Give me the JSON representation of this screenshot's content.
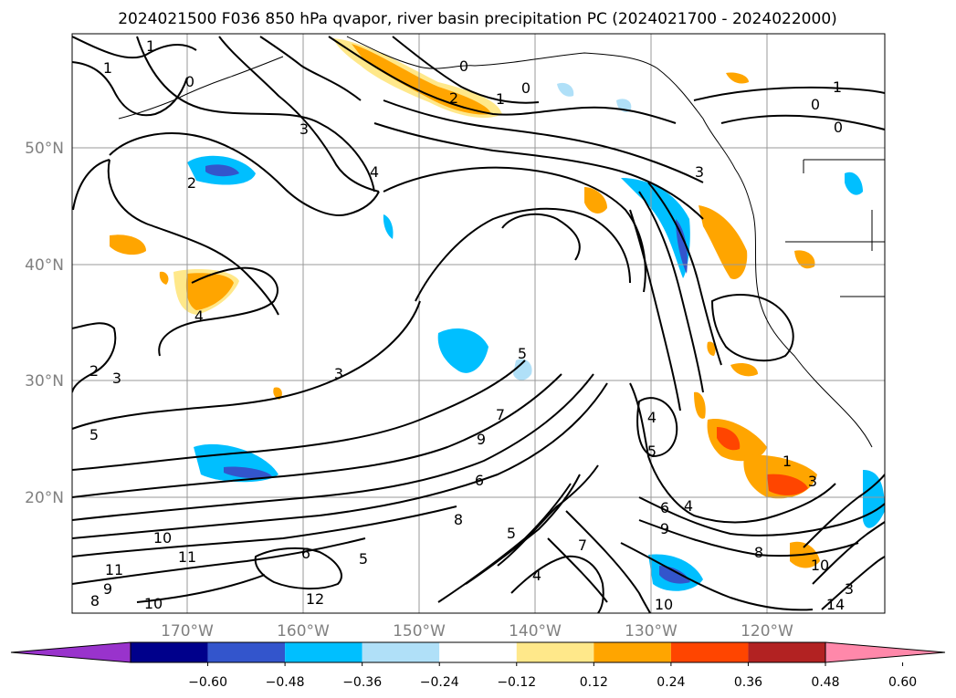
{
  "title": "2024021500 F036 850 hPa qvapor, river basin precipitation PC (2024021700 - 2024022000)",
  "lat_ticks": [
    "50°N",
    "40°N",
    "30°N",
    "20°N"
  ],
  "lon_ticks": [
    "170°W",
    "160°W",
    "150°W",
    "140°W",
    "130°W",
    "120°W"
  ],
  "colorbar": {
    "colors": [
      "#9933cc",
      "#00008b",
      "#3355cc",
      "#00bfff",
      "#b0e0f8",
      "#ffffff",
      "#ffe88a",
      "#ffa500",
      "#ff4500",
      "#b22222",
      "#ff88aa"
    ],
    "labels": [
      "−0.60",
      "−0.48",
      "−0.36",
      "−0.24",
      "−0.12",
      "0.12",
      "0.24",
      "0.36",
      "0.48",
      "0.60"
    ]
  },
  "contour_labels": [
    "1",
    "0",
    "1",
    "3",
    "2",
    "4",
    "2",
    "0",
    "1",
    "0",
    "1",
    "0",
    "0",
    "3",
    "5",
    "4",
    "3",
    "2",
    "3",
    "5",
    "4",
    "7",
    "9",
    "5",
    "6",
    "8",
    "10",
    "11",
    "11",
    "9",
    "8",
    "10",
    "6",
    "5",
    "4",
    "7",
    "4",
    "6",
    "9",
    "8",
    "10",
    "3",
    "1",
    "3",
    "12",
    "14",
    "10",
    "5"
  ],
  "features": {
    "contours": "850 hPa water vapor mixing ratio contours",
    "shading": "river basin precipitation PC",
    "coastline": "North America and Alaska coastline"
  }
}
